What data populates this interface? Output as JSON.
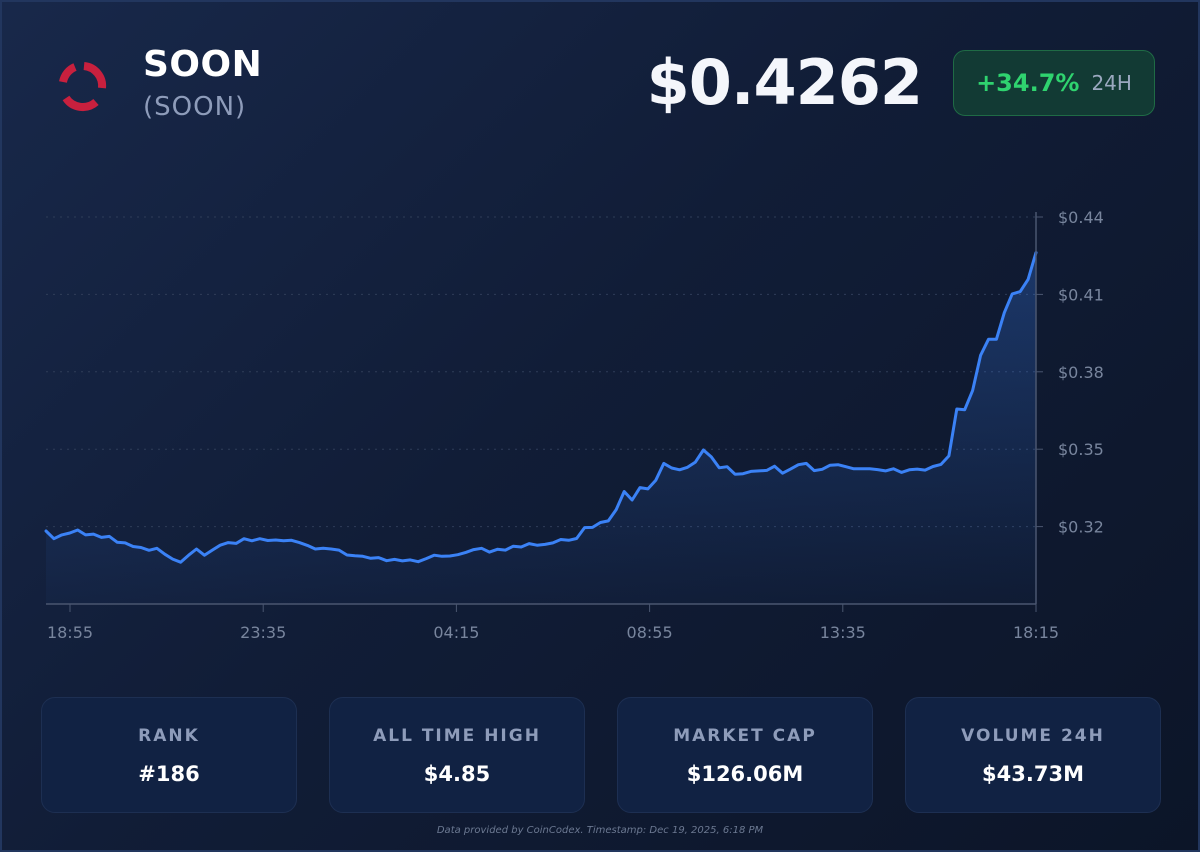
{
  "coin": {
    "name": "SOON",
    "symbol": "(SOON)",
    "logo_icon": "ring-logo-icon",
    "logo_color": "#c8203e"
  },
  "price": "$0.4262",
  "change": {
    "value": "+34.7%",
    "period": "24H",
    "color": "#2fd36f"
  },
  "stats": [
    {
      "label": "RANK",
      "value": "#186"
    },
    {
      "label": "ALL TIME HIGH",
      "value": "$4.85"
    },
    {
      "label": "MARKET CAP",
      "value": "$126.06M"
    },
    {
      "label": "VOLUME 24H",
      "value": "$43.73M"
    }
  ],
  "footer": "Data provided by CoinCodex. Timestamp: Dec 19, 2025, 6:18 PM",
  "chart_data": {
    "type": "area",
    "x_tick_labels": [
      "18:55",
      "23:35",
      "04:15",
      "08:55",
      "13:35",
      "18:15"
    ],
    "y_tick_labels": [
      "$0.32",
      "$0.35",
      "$0.38",
      "$0.41",
      "$0.44"
    ],
    "y_ticks": [
      0.32,
      0.35,
      0.38,
      0.41,
      0.44
    ],
    "ylim": [
      0.29,
      0.44
    ],
    "grid": true,
    "line_color": "#3b82f6",
    "x_label": "",
    "y_label": "",
    "series": [
      {
        "values": [
          0.3183,
          0.3153,
          0.3168,
          0.3175,
          0.3187,
          0.3168,
          0.3171,
          0.3158,
          0.3162,
          0.3139,
          0.3137,
          0.3123,
          0.3119,
          0.3108,
          0.3116,
          0.3093,
          0.3074,
          0.3062,
          0.3089,
          0.3113,
          0.3089,
          0.3109,
          0.3128,
          0.3138,
          0.3135,
          0.3153,
          0.3145,
          0.3153,
          0.3146,
          0.3148,
          0.3145,
          0.3147,
          0.3138,
          0.3127,
          0.3113,
          0.3116,
          0.3113,
          0.3109,
          0.309,
          0.3087,
          0.3085,
          0.3077,
          0.308,
          0.3068,
          0.3073,
          0.3067,
          0.3071,
          0.3064,
          0.3076,
          0.3089,
          0.3085,
          0.3086,
          0.3091,
          0.31,
          0.3111,
          0.3116,
          0.3101,
          0.3112,
          0.3109,
          0.3124,
          0.3121,
          0.3134,
          0.3128,
          0.3131,
          0.3137,
          0.315,
          0.3147,
          0.3154,
          0.3196,
          0.3197,
          0.3216,
          0.3222,
          0.3266,
          0.3336,
          0.3303,
          0.3351,
          0.3346,
          0.338,
          0.3445,
          0.3427,
          0.342,
          0.343,
          0.345,
          0.3497,
          0.347,
          0.3428,
          0.3432,
          0.3403,
          0.3405,
          0.3414,
          0.3416,
          0.3418,
          0.3434,
          0.3407,
          0.3423,
          0.344,
          0.3445,
          0.3417,
          0.3422,
          0.3438,
          0.344,
          0.3432,
          0.3424,
          0.3424,
          0.3424,
          0.3421,
          0.3416,
          0.3424,
          0.341,
          0.342,
          0.3423,
          0.3419,
          0.3433,
          0.3441,
          0.3474,
          0.3656,
          0.3653,
          0.3727,
          0.3864,
          0.3926,
          0.3926,
          0.4029,
          0.4102,
          0.4111,
          0.4158,
          0.4262
        ]
      }
    ]
  }
}
